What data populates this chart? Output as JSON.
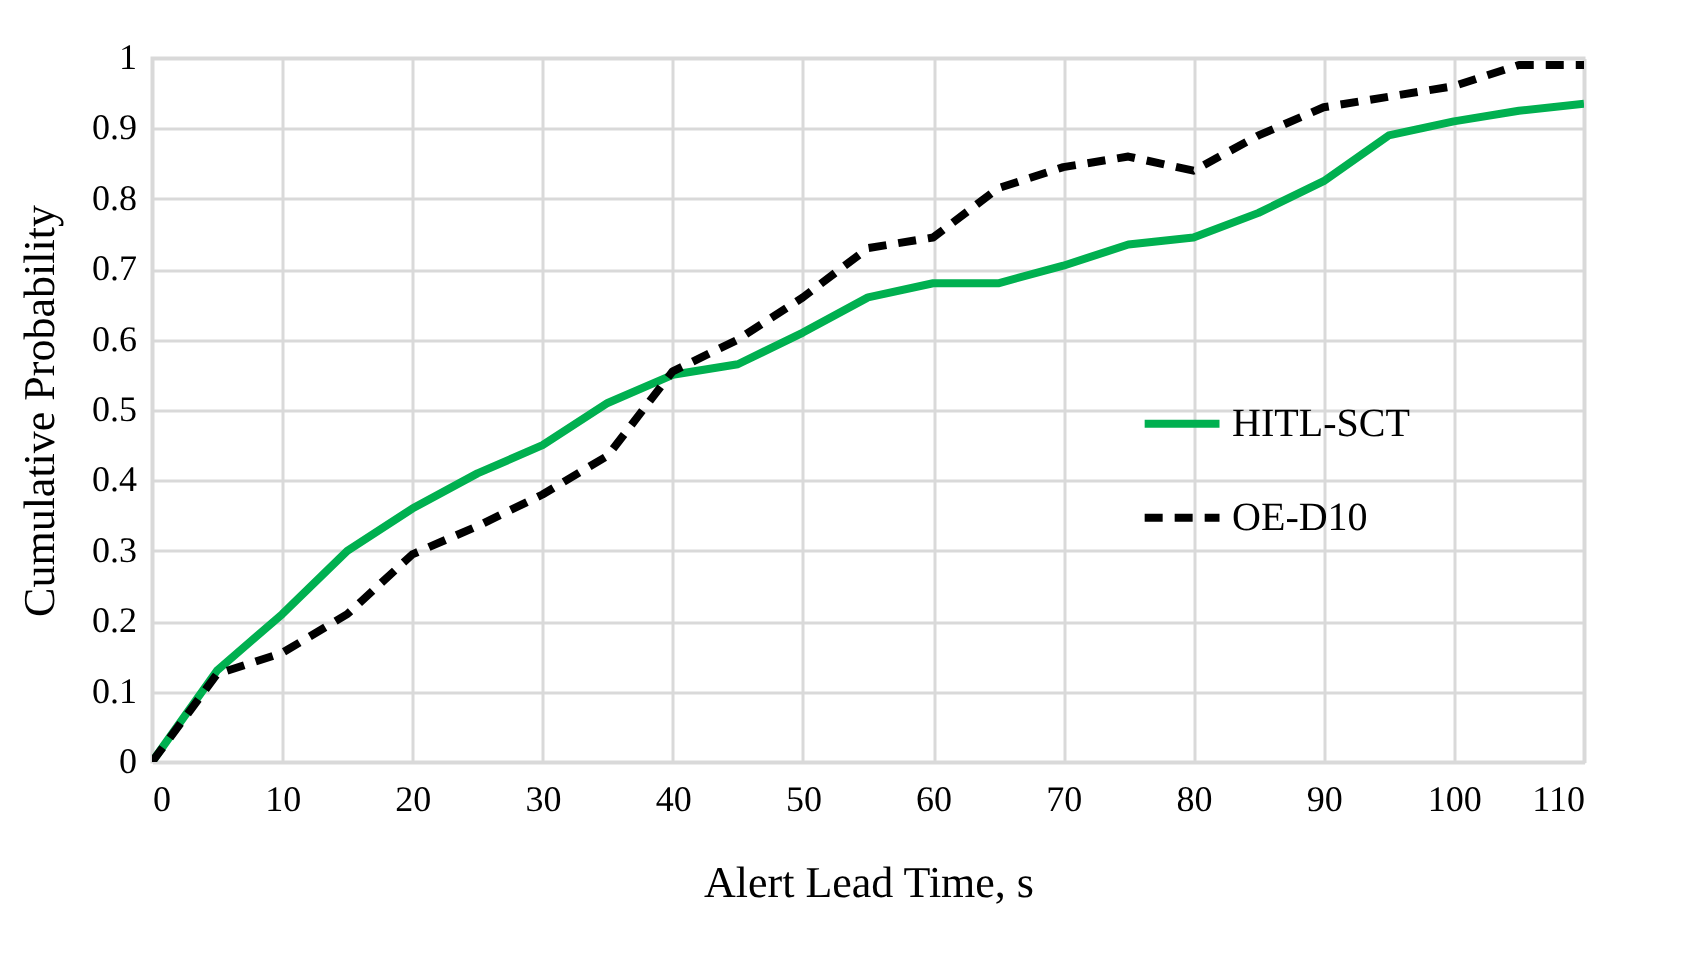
{
  "chart_data": {
    "type": "line",
    "xlabel": "Alert Lead Time, s",
    "ylabel": "Cumulative Probability",
    "x": [
      0,
      5,
      10,
      15,
      20,
      25,
      30,
      35,
      40,
      45,
      50,
      55,
      60,
      65,
      70,
      75,
      80,
      85,
      90,
      95,
      100,
      105,
      110
    ],
    "series": [
      {
        "name": "HITL-SCT",
        "color": "#00b050",
        "line_style": "solid",
        "values": [
          0,
          0.13,
          0.21,
          0.3,
          0.36,
          0.41,
          0.45,
          0.51,
          0.55,
          0.565,
          0.61,
          0.66,
          0.68,
          0.68,
          0.705,
          0.735,
          0.745,
          0.78,
          0.825,
          0.89,
          0.91,
          0.925,
          0.935
        ]
      },
      {
        "name": "OE-D10",
        "color": "#000000",
        "line_style": "dashed",
        "values": [
          0,
          0.125,
          0.155,
          0.21,
          0.295,
          0.335,
          0.38,
          0.435,
          0.555,
          0.6,
          0.66,
          0.73,
          0.745,
          0.815,
          0.845,
          0.86,
          0.84,
          0.89,
          0.93,
          0.945,
          0.96,
          0.99,
          0.99
        ]
      }
    ],
    "xlim": [
      0,
      110
    ],
    "xticks": [
      0,
      10,
      20,
      30,
      40,
      50,
      60,
      70,
      80,
      90,
      100,
      110
    ],
    "ylim": [
      0,
      1
    ],
    "yticks": [
      0,
      0.1,
      0.2,
      0.3,
      0.4,
      0.5,
      0.6,
      0.7,
      0.8,
      0.9,
      1
    ],
    "grid": true,
    "legend": "right",
    "marker": "none"
  }
}
